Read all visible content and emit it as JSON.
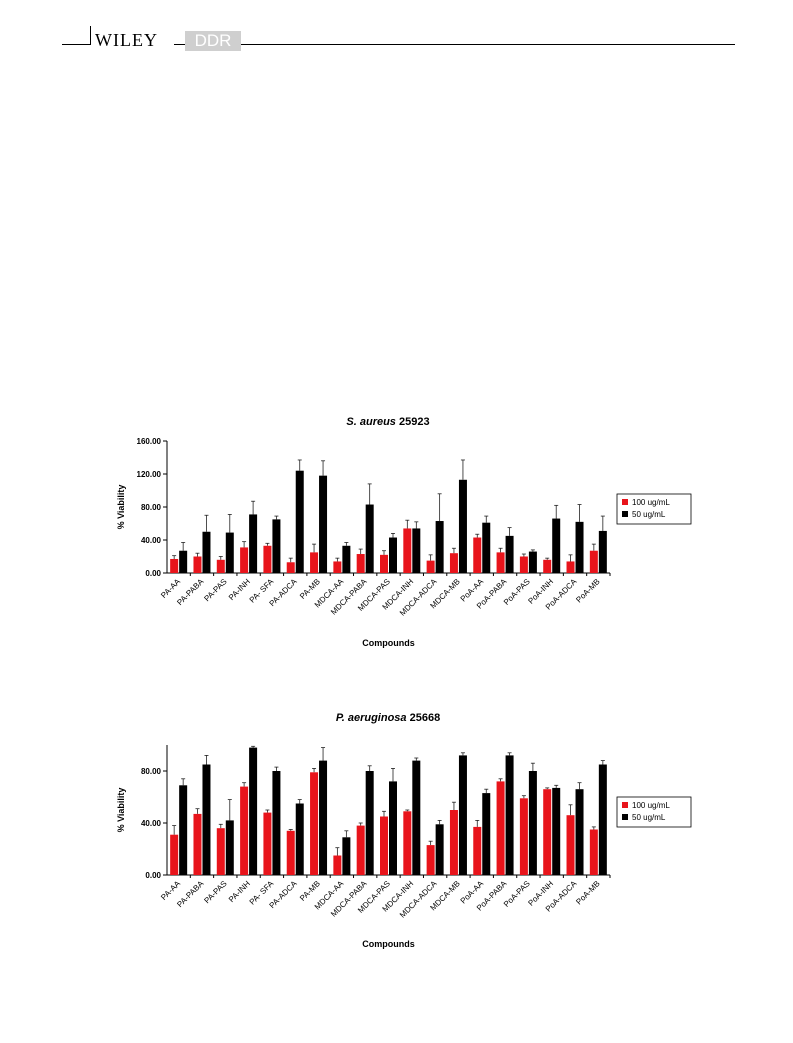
{
  "header": {
    "publisher": "WILEY",
    "journal": "DDR"
  },
  "chart_data": [
    {
      "type": "bar",
      "title": "S. aureus 25923",
      "title_organism": "S. aureus",
      "title_strain": "25923",
      "xlabel": "Compounds",
      "ylabel": "% Viability",
      "ylim": [
        0,
        160
      ],
      "yticks": [
        "0.00",
        "40.00",
        "80.00",
        "120.00",
        "160.00"
      ],
      "ytick_values": [
        0,
        40,
        80,
        120,
        160
      ],
      "legend_position": "right",
      "categories": [
        "PA-AA",
        "PA-PABA",
        "PA-PAS",
        "PA-INH",
        "PA- SFA",
        "PA-ADCA",
        "PA-MB",
        "MDCA-AA",
        "MDCA-PABA",
        "MDCA-PAS",
        "MDCA-INH",
        "MDCA-ADCA",
        "MDCA-MB",
        "PoA-AA",
        "PoA-PABA",
        "PoA-PAS",
        "PoA-INH",
        "PoA-ADCA",
        "PoA-MB"
      ],
      "series": [
        {
          "name": "100 ug/mL",
          "color": "#e8141b",
          "values": [
            17,
            20,
            16,
            31,
            33,
            13,
            25,
            14,
            23,
            22,
            54,
            15,
            24,
            43,
            25,
            20,
            16,
            14,
            27
          ],
          "errors": [
            4,
            4,
            4,
            7,
            3,
            5,
            10,
            4,
            6,
            5,
            10,
            7,
            6,
            4,
            5,
            3,
            2,
            8,
            8
          ]
        },
        {
          "name": "50 ug/mL",
          "color": "#000000",
          "values": [
            27,
            50,
            49,
            71,
            65,
            124,
            118,
            33,
            83,
            43,
            54,
            63,
            113,
            61,
            45,
            26,
            66,
            62,
            51
          ],
          "errors": [
            10,
            20,
            22,
            16,
            4,
            13,
            18,
            4,
            25,
            5,
            8,
            33,
            24,
            8,
            10,
            2,
            16,
            21,
            18
          ]
        }
      ]
    },
    {
      "type": "bar",
      "title": "P. aeruginosa 25668",
      "title_organism": "P. aeruginosa",
      "title_strain": "25668",
      "xlabel": "Compounds",
      "ylabel": "% Viability",
      "ylim": [
        0,
        100
      ],
      "yticks": [
        "0.00",
        "40.00",
        "80.00"
      ],
      "ytick_values": [
        0,
        40,
        80
      ],
      "legend_position": "right",
      "categories": [
        "PA-AA",
        "PA-PABA",
        "PA-PAS",
        "PA-INH",
        "PA- SFA",
        "PA-ADCA",
        "PA-MB",
        "MDCA-AA",
        "MDCA-PABA",
        "MDCA-PAS",
        "MDCA-INH",
        "MDCA-ADCA",
        "MDCA-MB",
        "PoA-AA",
        "PoA-PABA",
        "PoA-PAS",
        "PoA-INH",
        "PoA-ADCA",
        "PoA-MB"
      ],
      "series": [
        {
          "name": "100 ug/mL",
          "color": "#e8141b",
          "values": [
            31,
            47,
            36,
            68,
            48,
            34,
            79,
            15,
            38,
            45,
            49,
            23,
            50,
            37,
            72,
            59,
            66,
            46,
            35
          ],
          "errors": [
            7,
            4,
            3,
            3,
            2,
            1,
            3,
            6,
            2,
            4,
            1,
            3,
            6,
            5,
            2,
            2,
            1,
            8,
            2
          ]
        },
        {
          "name": "50 ug/mL",
          "color": "#000000",
          "values": [
            69,
            85,
            42,
            98,
            80,
            55,
            88,
            29,
            80,
            72,
            88,
            39,
            92,
            63,
            92,
            80,
            67,
            66,
            85
          ],
          "errors": [
            5,
            7,
            16,
            1,
            3,
            3,
            10,
            5,
            4,
            10,
            2,
            3,
            2,
            3,
            2,
            6,
            2,
            5,
            3
          ]
        }
      ]
    }
  ]
}
